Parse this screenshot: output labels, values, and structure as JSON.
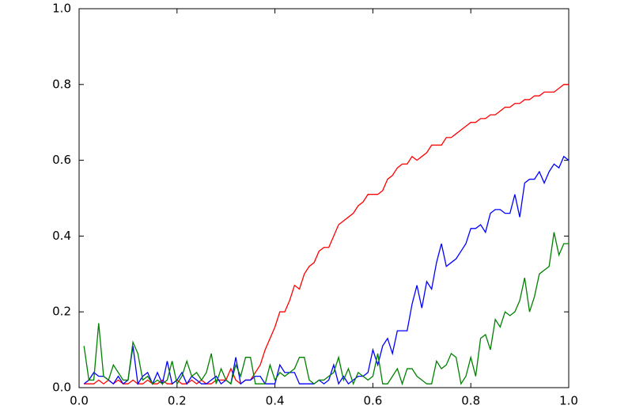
{
  "chart_data": {
    "type": "line",
    "x": [
      0.01,
      0.02,
      0.03,
      0.04,
      0.05,
      0.06,
      0.07,
      0.08,
      0.09,
      0.1,
      0.11,
      0.12,
      0.13,
      0.14,
      0.15,
      0.16,
      0.17,
      0.18,
      0.19,
      0.2,
      0.21,
      0.22,
      0.23,
      0.24,
      0.25,
      0.26,
      0.27,
      0.28,
      0.29,
      0.3,
      0.31,
      0.32,
      0.33,
      0.34,
      0.35,
      0.36,
      0.37,
      0.38,
      0.39,
      0.4,
      0.41,
      0.42,
      0.43,
      0.44,
      0.45,
      0.46,
      0.47,
      0.48,
      0.49,
      0.5,
      0.51,
      0.52,
      0.53,
      0.54,
      0.55,
      0.56,
      0.57,
      0.58,
      0.59,
      0.6,
      0.61,
      0.62,
      0.63,
      0.64,
      0.65,
      0.66,
      0.67,
      0.68,
      0.69,
      0.7,
      0.71,
      0.72,
      0.73,
      0.74,
      0.75,
      0.76,
      0.77,
      0.78,
      0.79,
      0.8,
      0.81,
      0.82,
      0.83,
      0.84,
      0.85,
      0.86,
      0.87,
      0.88,
      0.89,
      0.9,
      0.91,
      0.92,
      0.93,
      0.94,
      0.95,
      0.96,
      0.97,
      0.98,
      0.99,
      1.0
    ],
    "series": [
      {
        "color": "#ff0000",
        "values": [
          0.01,
          0.01,
          0.01,
          0.02,
          0.01,
          0.02,
          0.01,
          0.02,
          0.01,
          0.01,
          0.02,
          0.01,
          0.01,
          0.02,
          0.01,
          0.01,
          0.02,
          0.01,
          0.01,
          0.02,
          0.01,
          0.01,
          0.02,
          0.01,
          0.02,
          0.01,
          0.01,
          0.02,
          0.02,
          0.02,
          0.05,
          0.02,
          0.01,
          0.02,
          0.02,
          0.04,
          0.06,
          0.1,
          0.13,
          0.16,
          0.2,
          0.2,
          0.23,
          0.27,
          0.26,
          0.3,
          0.32,
          0.33,
          0.36,
          0.37,
          0.37,
          0.4,
          0.43,
          0.44,
          0.45,
          0.46,
          0.48,
          0.49,
          0.51,
          0.51,
          0.51,
          0.52,
          0.55,
          0.56,
          0.58,
          0.59,
          0.59,
          0.61,
          0.6,
          0.61,
          0.62,
          0.64,
          0.64,
          0.64,
          0.66,
          0.66,
          0.67,
          0.68,
          0.69,
          0.7,
          0.7,
          0.71,
          0.71,
          0.72,
          0.72,
          0.73,
          0.74,
          0.74,
          0.75,
          0.75,
          0.76,
          0.76,
          0.77,
          0.77,
          0.78,
          0.78,
          0.78,
          0.79,
          0.8,
          0.8
        ]
      },
      {
        "color": "#0000ff",
        "values": [
          0.01,
          0.02,
          0.04,
          0.03,
          0.03,
          0.02,
          0.01,
          0.03,
          0.01,
          0.02,
          0.11,
          0.01,
          0.03,
          0.04,
          0.01,
          0.04,
          0.01,
          0.07,
          0.01,
          0.02,
          0.04,
          0.01,
          0.03,
          0.02,
          0.01,
          0.01,
          0.02,
          0.03,
          0.01,
          0.02,
          0.01,
          0.08,
          0.01,
          0.02,
          0.02,
          0.03,
          0.03,
          0.01,
          0.01,
          0.01,
          0.06,
          0.04,
          0.04,
          0.04,
          0.01,
          0.01,
          0.01,
          0.01,
          0.02,
          0.01,
          0.02,
          0.06,
          0.01,
          0.03,
          0.01,
          0.02,
          0.03,
          0.03,
          0.04,
          0.1,
          0.06,
          0.11,
          0.13,
          0.09,
          0.15,
          0.15,
          0.15,
          0.22,
          0.27,
          0.21,
          0.28,
          0.26,
          0.33,
          0.38,
          0.32,
          0.33,
          0.34,
          0.36,
          0.38,
          0.42,
          0.42,
          0.43,
          0.41,
          0.46,
          0.47,
          0.47,
          0.46,
          0.46,
          0.51,
          0.45,
          0.54,
          0.55,
          0.55,
          0.57,
          0.54,
          0.57,
          0.59,
          0.58,
          0.61,
          0.6
        ]
      },
      {
        "color": "#008000",
        "values": [
          0.11,
          0.02,
          0.02,
          0.17,
          0.03,
          0.02,
          0.06,
          0.04,
          0.02,
          0.02,
          0.12,
          0.09,
          0.02,
          0.03,
          0.01,
          0.02,
          0.01,
          0.02,
          0.07,
          0.01,
          0.03,
          0.07,
          0.03,
          0.04,
          0.02,
          0.04,
          0.09,
          0.01,
          0.05,
          0.02,
          0.01,
          0.06,
          0.03,
          0.08,
          0.08,
          0.01,
          0.01,
          0.01,
          0.06,
          0.02,
          0.04,
          0.03,
          0.04,
          0.05,
          0.08,
          0.08,
          0.02,
          0.01,
          0.02,
          0.02,
          0.03,
          0.04,
          0.08,
          0.02,
          0.05,
          0.01,
          0.04,
          0.03,
          0.02,
          0.03,
          0.09,
          0.01,
          0.01,
          0.03,
          0.05,
          0.01,
          0.05,
          0.05,
          0.03,
          0.02,
          0.01,
          0.01,
          0.07,
          0.05,
          0.06,
          0.09,
          0.08,
          0.01,
          0.03,
          0.08,
          0.03,
          0.13,
          0.14,
          0.1,
          0.18,
          0.16,
          0.2,
          0.19,
          0.2,
          0.23,
          0.29,
          0.2,
          0.24,
          0.3,
          0.31,
          0.32,
          0.41,
          0.35,
          0.38,
          0.38
        ]
      }
    ],
    "xlim": [
      0,
      1
    ],
    "ylim": [
      0,
      1
    ],
    "xticks": [
      {
        "value": 0,
        "label": "0.0"
      },
      0.2,
      0.4,
      0.6,
      0.8,
      {
        "value": 1,
        "label": "1.0"
      }
    ],
    "yticks": [
      {
        "value": 0,
        "label": "0.0"
      },
      0.2,
      0.4,
      0.6,
      0.8,
      {
        "value": 1,
        "label": "1.0"
      }
    ],
    "grid": false
  }
}
